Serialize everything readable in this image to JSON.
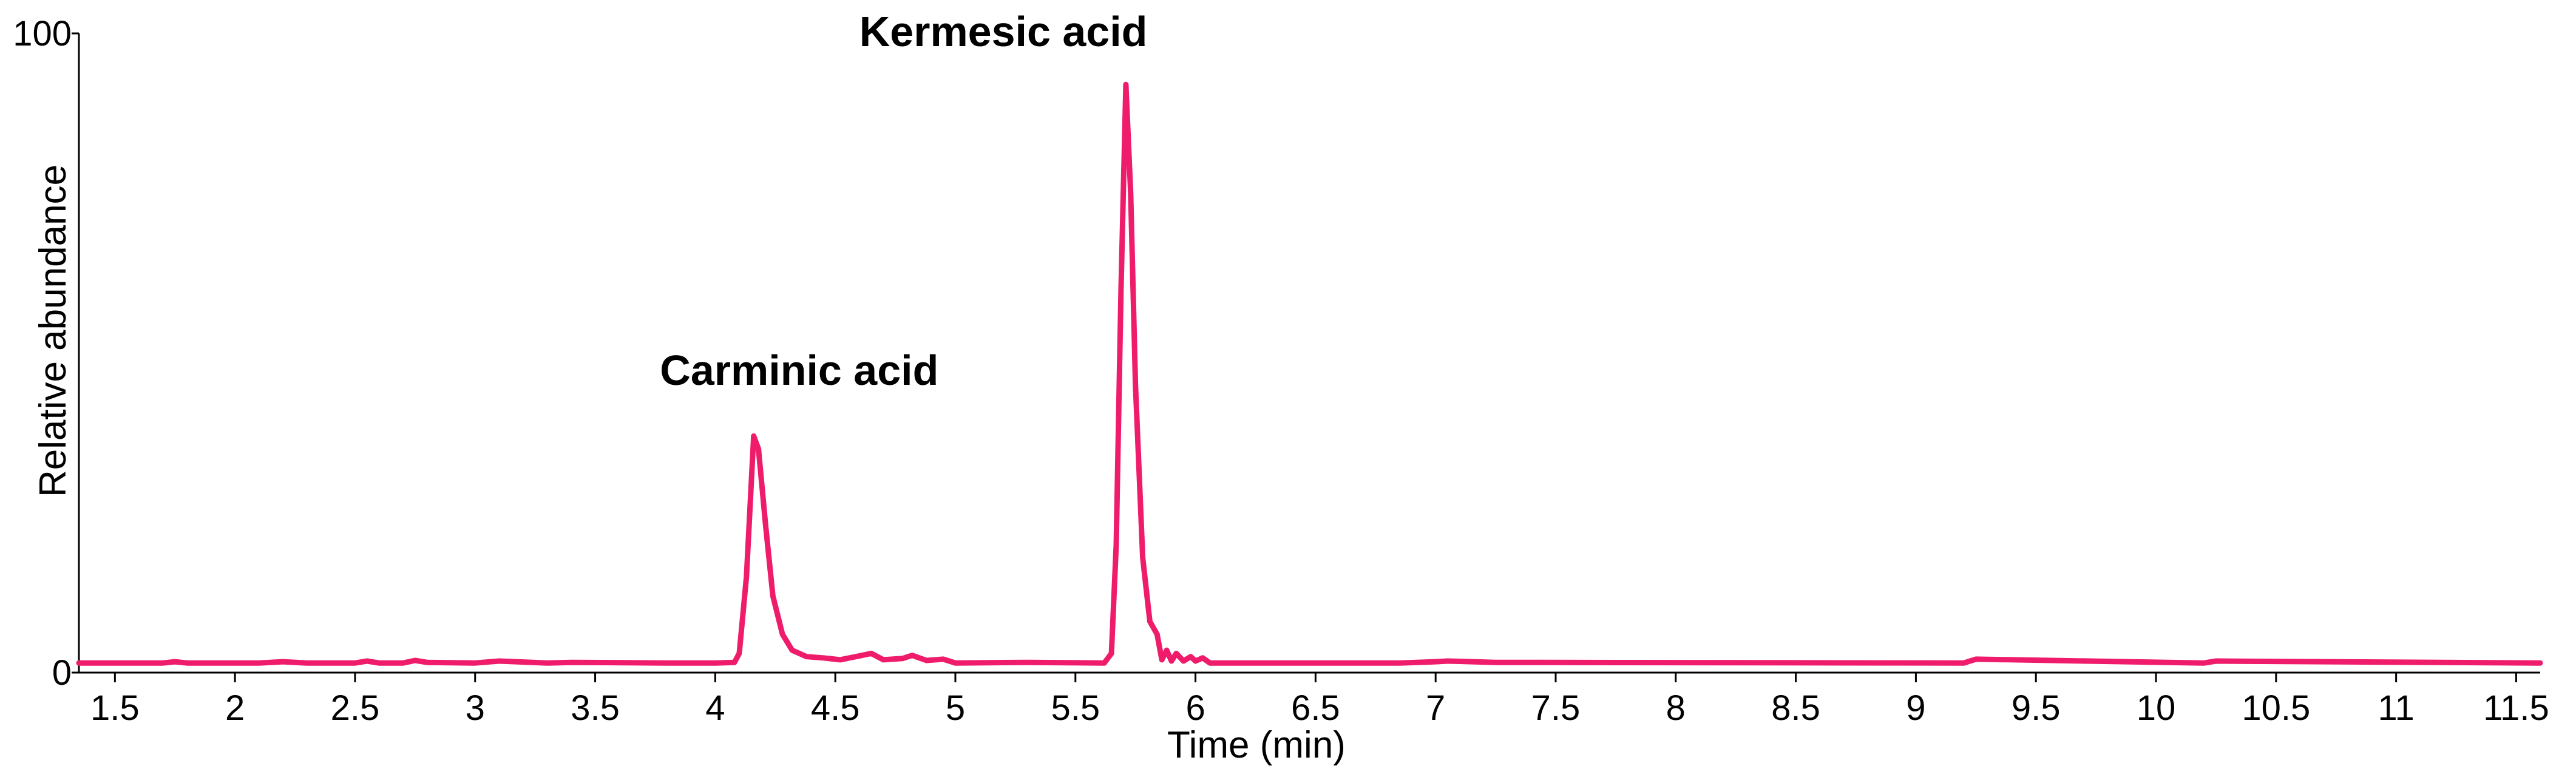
{
  "chart_data": {
    "type": "line",
    "title": "",
    "xlabel": "Time (min)",
    "ylabel": "Relative abundance",
    "xlim": [
      1.35,
      11.6
    ],
    "ylim": [
      0,
      100
    ],
    "x_ticks": [
      "1.5",
      "2",
      "2.5",
      "3",
      "3.5",
      "4",
      "4.5",
      "5",
      "5.5",
      "6",
      "6.5",
      "7",
      "7.5",
      "8",
      "8.5",
      "9",
      "9.5",
      "10",
      "10.5",
      "11",
      "11.5"
    ],
    "y_ticks": [
      "0",
      "100"
    ],
    "grid": false,
    "legend": "none",
    "line_color": "#ee1c6b",
    "annotations": [
      {
        "text": "Carminic acid",
        "x": 4.35,
        "y": 45
      },
      {
        "text": "Kermesic acid",
        "x": 5.2,
        "y": 98
      }
    ],
    "series": [
      {
        "x": [
          1.35,
          1.7,
          1.75,
          1.8,
          2.1,
          2.2,
          2.3,
          2.5,
          2.55,
          2.6,
          2.7,
          2.75,
          2.8,
          3.0,
          3.1,
          3.3,
          3.4,
          3.8,
          4.0,
          4.08,
          4.1,
          4.13,
          4.16,
          4.18,
          4.21,
          4.24,
          4.28,
          4.32,
          4.38,
          4.45,
          4.52,
          4.6,
          4.65,
          4.7,
          4.78,
          4.82,
          4.88,
          4.95,
          5.0,
          5.3,
          5.62,
          5.65,
          5.67,
          5.69,
          5.71,
          5.73,
          5.75,
          5.78,
          5.81,
          5.84,
          5.86,
          5.88,
          5.9,
          5.92,
          5.95,
          5.98,
          6.0,
          6.03,
          6.06,
          6.85,
          7.0,
          7.05,
          7.25,
          9.2,
          9.25,
          10.2,
          10.25,
          11.6
        ],
        "y": [
          1.5,
          1.5,
          1.7,
          1.5,
          1.5,
          1.7,
          1.5,
          1.5,
          1.8,
          1.5,
          1.5,
          1.9,
          1.6,
          1.5,
          1.8,
          1.5,
          1.6,
          1.5,
          1.5,
          1.6,
          3,
          15,
          37,
          35,
          23,
          12,
          6,
          3.5,
          2.5,
          2.3,
          2,
          2.6,
          3,
          2,
          2.2,
          2.7,
          1.9,
          2.1,
          1.5,
          1.6,
          1.5,
          3,
          20,
          60,
          92,
          75,
          45,
          18,
          8,
          6,
          2,
          3.5,
          1.8,
          3,
          1.8,
          2.5,
          1.8,
          2.3,
          1.5,
          1.5,
          1.7,
          1.8,
          1.6,
          1.5,
          2.1,
          1.5,
          1.8,
          1.5
        ]
      }
    ]
  }
}
